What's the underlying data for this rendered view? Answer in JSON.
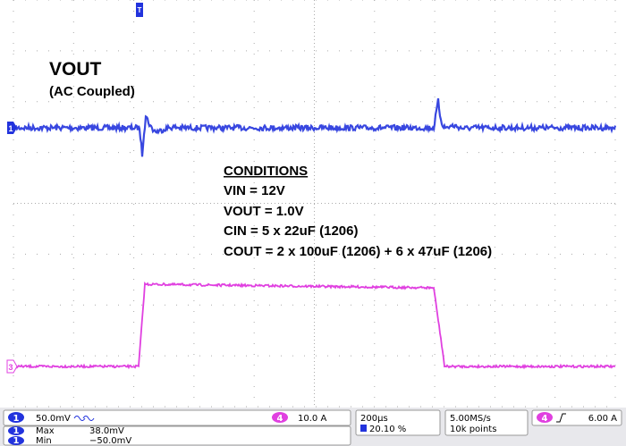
{
  "annotations": {
    "title": "VOUT",
    "subtitle": "(AC Coupled)",
    "conditions_heading": "CONDITIONS",
    "conditions": [
      "VIN = 12V",
      "VOUT = 1.0V",
      "CIN = 5 x 22uF (1206)",
      "COUT = 2 x 100uF (1206) + 6 x 47uF (1206)"
    ]
  },
  "markers": {
    "trigger": "T",
    "ch1": "1",
    "ch3": "3"
  },
  "status_bar": {
    "ch1_badge": "1",
    "ch1_scale": "50.0mV",
    "ch4_badge": "4",
    "ch4_scale": "10.0 A",
    "timebase": "200µs",
    "trigger_position": "20.10 %",
    "sample_rate": "5.00MS/s",
    "record_length": "10k points",
    "trigger_badge": "4",
    "trigger_level": "6.00 A",
    "measurements": [
      {
        "badge": "1",
        "label": "Max",
        "value": "38.0mV"
      },
      {
        "badge": "1",
        "label": "Min",
        "value": "−50.0mV"
      }
    ]
  }
}
